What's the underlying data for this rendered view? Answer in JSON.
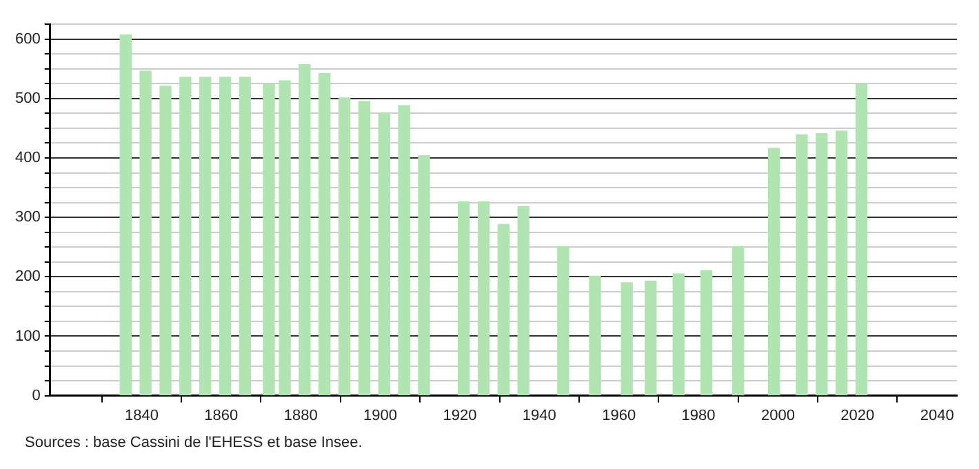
{
  "chart_data": {
    "type": "bar",
    "x": [
      1836,
      1841,
      1846,
      1851,
      1856,
      1861,
      1866,
      1872,
      1876,
      1881,
      1886,
      1891,
      1896,
      1901,
      1906,
      1911,
      1921,
      1926,
      1931,
      1936,
      1946,
      1954,
      1962,
      1968,
      1975,
      1982,
      1990,
      1999,
      2006,
      2011,
      2016,
      2021
    ],
    "values": [
      607,
      546,
      521,
      536,
      536,
      536,
      536,
      524,
      530,
      557,
      542,
      501,
      495,
      475,
      488,
      404,
      326,
      326,
      288,
      318,
      251,
      201,
      190,
      193,
      205,
      210,
      251,
      416,
      439,
      441,
      445,
      524
    ],
    "color": "#b0e4b0",
    "xlim": [
      1817,
      2045
    ],
    "xticks": [
      1840,
      1860,
      1880,
      1900,
      1920,
      1940,
      1960,
      1980,
      2000,
      2020,
      2040
    ],
    "ylim": [
      0,
      625
    ],
    "yticks": [
      0,
      {
        "value": 25,
        "label": null
      },
      {
        "value": 50,
        "label": null
      },
      {
        "value": 75,
        "label": null
      },
      100,
      {
        "value": 125,
        "label": null
      },
      {
        "value": 150,
        "label": null
      },
      {
        "value": 175,
        "label": null
      },
      200,
      {
        "value": 225,
        "label": null
      },
      {
        "value": 250,
        "label": null
      },
      {
        "value": 275,
        "label": null
      },
      300,
      {
        "value": 325,
        "label": null
      },
      {
        "value": 350,
        "label": null
      },
      {
        "value": 375,
        "label": null
      },
      400,
      {
        "value": 425,
        "label": null
      },
      {
        "value": 450,
        "label": null
      },
      {
        "value": 475,
        "label": null
      },
      500,
      {
        "value": 525,
        "label": null
      },
      {
        "value": 550,
        "label": null
      },
      {
        "value": 575,
        "label": null
      },
      600,
      {
        "value": 625,
        "label": null
      }
    ],
    "grid": "y",
    "annotations": [
      "Sources : base Cassini de l'EHESS et base Insee."
    ]
  }
}
